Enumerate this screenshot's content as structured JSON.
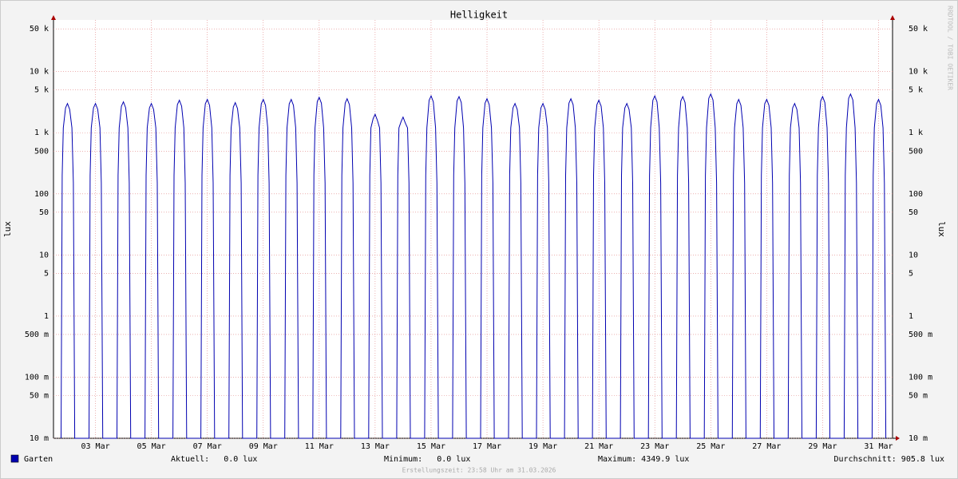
{
  "chart_data": {
    "type": "line",
    "title": "Helligkeit",
    "ylabel": "lux",
    "side_note": "RRDTOOL / TOBI OETIKER",
    "footer": "Erstellungszeit: 23:58 Uhr am 31.03.2026",
    "stats": [
      "Aktuell:   0.0 lux",
      "Minimum:   0.0 lux",
      "Maximum: 4349.9 lux",
      "Durchschnitt: 905.8 lux"
    ],
    "log_y": true,
    "grid": true,
    "xlim": [
      2,
      32
    ],
    "ylim": [
      0.01,
      70000
    ],
    "xticks": [
      {
        "value": 3.5,
        "label": "03 Mar"
      },
      {
        "value": 5.5,
        "label": "05 Mar"
      },
      {
        "value": 7.5,
        "label": "07 Mar"
      },
      {
        "value": 9.5,
        "label": "09 Mar"
      },
      {
        "value": 11.5,
        "label": "11 Mar"
      },
      {
        "value": 13.5,
        "label": "13 Mar"
      },
      {
        "value": 15.5,
        "label": "15 Mar"
      },
      {
        "value": 17.5,
        "label": "17 Mar"
      },
      {
        "value": 19.5,
        "label": "19 Mar"
      },
      {
        "value": 21.5,
        "label": "21 Mar"
      },
      {
        "value": 23.5,
        "label": "23 Mar"
      },
      {
        "value": 25.5,
        "label": "25 Mar"
      },
      {
        "value": 27.5,
        "label": "27 Mar"
      },
      {
        "value": 29.5,
        "label": "29 Mar"
      },
      {
        "value": 31.5,
        "label": "31 Mar"
      }
    ],
    "yticks": [
      {
        "value": 0.01,
        "label": "10 m"
      },
      {
        "value": 0.05,
        "label": "50 m"
      },
      {
        "value": 0.1,
        "label": "100 m"
      },
      {
        "value": 0.5,
        "label": "500 m"
      },
      1,
      5,
      10,
      50,
      100,
      500,
      {
        "value": 1000,
        "label": "1 k"
      },
      {
        "value": 5000,
        "label": "5 k"
      },
      {
        "value": 10000,
        "label": "10 k"
      },
      {
        "value": 50000,
        "label": "50 k"
      }
    ],
    "x": [
      2.27,
      2.31,
      2.35,
      2.43,
      2.5,
      2.58,
      2.66,
      2.71,
      2.76,
      3.27,
      3.31,
      3.35,
      3.43,
      3.5,
      3.58,
      3.66,
      3.71,
      3.76,
      4.27,
      4.31,
      4.35,
      4.43,
      4.5,
      4.58,
      4.66,
      4.71,
      4.76,
      5.27,
      5.31,
      5.35,
      5.43,
      5.5,
      5.58,
      5.66,
      5.71,
      5.76,
      6.27,
      6.31,
      6.35,
      6.43,
      6.5,
      6.58,
      6.66,
      6.71,
      6.76,
      7.27,
      7.31,
      7.35,
      7.43,
      7.5,
      7.58,
      7.66,
      7.71,
      7.76,
      8.27,
      8.31,
      8.35,
      8.43,
      8.5,
      8.58,
      8.66,
      8.71,
      8.76,
      9.27,
      9.31,
      9.35,
      9.43,
      9.5,
      9.58,
      9.66,
      9.71,
      9.76,
      10.27,
      10.31,
      10.35,
      10.43,
      10.5,
      10.58,
      10.66,
      10.71,
      10.76,
      11.27,
      11.31,
      11.35,
      11.43,
      11.5,
      11.58,
      11.66,
      11.71,
      11.76,
      12.27,
      12.31,
      12.35,
      12.43,
      12.5,
      12.58,
      12.66,
      12.71,
      12.76,
      13.27,
      13.31,
      13.35,
      13.43,
      13.5,
      13.58,
      13.66,
      13.71,
      13.76,
      14.27,
      14.31,
      14.35,
      14.43,
      14.5,
      14.58,
      14.66,
      14.71,
      14.76,
      15.27,
      15.31,
      15.35,
      15.43,
      15.5,
      15.58,
      15.66,
      15.71,
      15.76,
      16.27,
      16.31,
      16.35,
      16.43,
      16.5,
      16.58,
      16.66,
      16.71,
      16.76,
      17.27,
      17.31,
      17.35,
      17.43,
      17.5,
      17.58,
      17.66,
      17.71,
      17.76,
      18.27,
      18.31,
      18.35,
      18.43,
      18.5,
      18.58,
      18.66,
      18.71,
      18.76,
      19.27,
      19.31,
      19.35,
      19.43,
      19.5,
      19.58,
      19.66,
      19.71,
      19.76,
      20.27,
      20.31,
      20.35,
      20.43,
      20.5,
      20.58,
      20.66,
      20.71,
      20.76,
      21.27,
      21.31,
      21.35,
      21.43,
      21.5,
      21.58,
      21.66,
      21.71,
      21.76,
      22.27,
      22.31,
      22.35,
      22.43,
      22.5,
      22.58,
      22.66,
      22.71,
      22.76,
      23.27,
      23.31,
      23.35,
      23.43,
      23.5,
      23.58,
      23.66,
      23.71,
      23.76,
      24.27,
      24.31,
      24.35,
      24.43,
      24.5,
      24.58,
      24.66,
      24.71,
      24.76,
      25.27,
      25.31,
      25.35,
      25.43,
      25.5,
      25.58,
      25.66,
      25.71,
      25.76,
      26.27,
      26.31,
      26.35,
      26.43,
      26.5,
      26.58,
      26.66,
      26.71,
      26.76,
      27.27,
      27.31,
      27.35,
      27.43,
      27.5,
      27.58,
      27.66,
      27.71,
      27.76,
      28.27,
      28.31,
      28.35,
      28.43,
      28.5,
      28.58,
      28.66,
      28.71,
      28.76,
      29.27,
      29.31,
      29.35,
      29.43,
      29.5,
      29.58,
      29.66,
      29.71,
      29.76,
      30.27,
      30.31,
      30.35,
      30.43,
      30.5,
      30.58,
      30.66,
      30.71,
      30.76,
      31.27,
      31.31,
      31.35,
      31.43,
      31.5,
      31.58,
      31.66,
      31.71,
      31.76
    ],
    "series": [
      {
        "name": "Garten",
        "color": "#0000b0",
        "values": [
          0,
          200,
          1200,
          2550,
          3000,
          2400,
          1200,
          150,
          0,
          0,
          200,
          1200,
          2550,
          3000,
          2400,
          1200,
          150,
          0,
          0,
          200,
          1200,
          2720,
          3200,
          2560,
          1200,
          150,
          0,
          0,
          200,
          1200,
          2550,
          3000,
          2400,
          1200,
          150,
          0,
          0,
          200,
          1200,
          2890,
          3400,
          2720,
          1200,
          150,
          0,
          0,
          200,
          1200,
          2975,
          3500,
          2800,
          1200,
          150,
          0,
          0,
          200,
          1200,
          2635,
          3100,
          2480,
          1200,
          150,
          0,
          0,
          200,
          1200,
          2975,
          3500,
          2800,
          1200,
          150,
          0,
          0,
          200,
          1200,
          2975,
          3500,
          2800,
          1200,
          150,
          0,
          0,
          200,
          1200,
          3230,
          3800,
          3040,
          1200,
          150,
          0,
          0,
          200,
          1200,
          3060,
          3600,
          2880,
          1200,
          150,
          0,
          0,
          200,
          1200,
          1700,
          2000,
          1600,
          1200,
          150,
          0,
          0,
          200,
          1200,
          1530,
          1800,
          1440,
          1200,
          150,
          0,
          0,
          200,
          1200,
          3400,
          4000,
          3200,
          1200,
          150,
          0,
          0,
          200,
          1200,
          3315,
          3900,
          3120,
          1200,
          150,
          0,
          0,
          200,
          1200,
          3060,
          3600,
          2880,
          1200,
          150,
          0,
          0,
          200,
          1200,
          2550,
          3000,
          2400,
          1200,
          150,
          0,
          0,
          200,
          1200,
          2550,
          3000,
          2400,
          1200,
          150,
          0,
          0,
          200,
          1200,
          3060,
          3600,
          2880,
          1200,
          150,
          0,
          0,
          200,
          1200,
          2890,
          3400,
          2720,
          1200,
          150,
          0,
          0,
          200,
          1200,
          2550,
          3000,
          2400,
          1200,
          150,
          0,
          0,
          200,
          1200,
          3400,
          4000,
          3200,
          1200,
          150,
          0,
          0,
          200,
          1200,
          3315,
          3900,
          3120,
          1200,
          150,
          0,
          0,
          200,
          1200,
          3655,
          4300,
          3440,
          1200,
          150,
          0,
          0,
          200,
          1200,
          2975,
          3500,
          2800,
          1200,
          150,
          0,
          0,
          200,
          1200,
          2975,
          3500,
          2800,
          1200,
          150,
          0,
          0,
          200,
          1200,
          2550,
          3000,
          2400,
          1200,
          150,
          0,
          0,
          200,
          1200,
          3315,
          3900,
          3120,
          1200,
          150,
          0,
          0,
          200,
          1200,
          3655,
          4300,
          3440,
          1200,
          150,
          0,
          0,
          200,
          1200,
          2975,
          3500,
          2800,
          1200,
          150,
          0
        ]
      }
    ]
  }
}
